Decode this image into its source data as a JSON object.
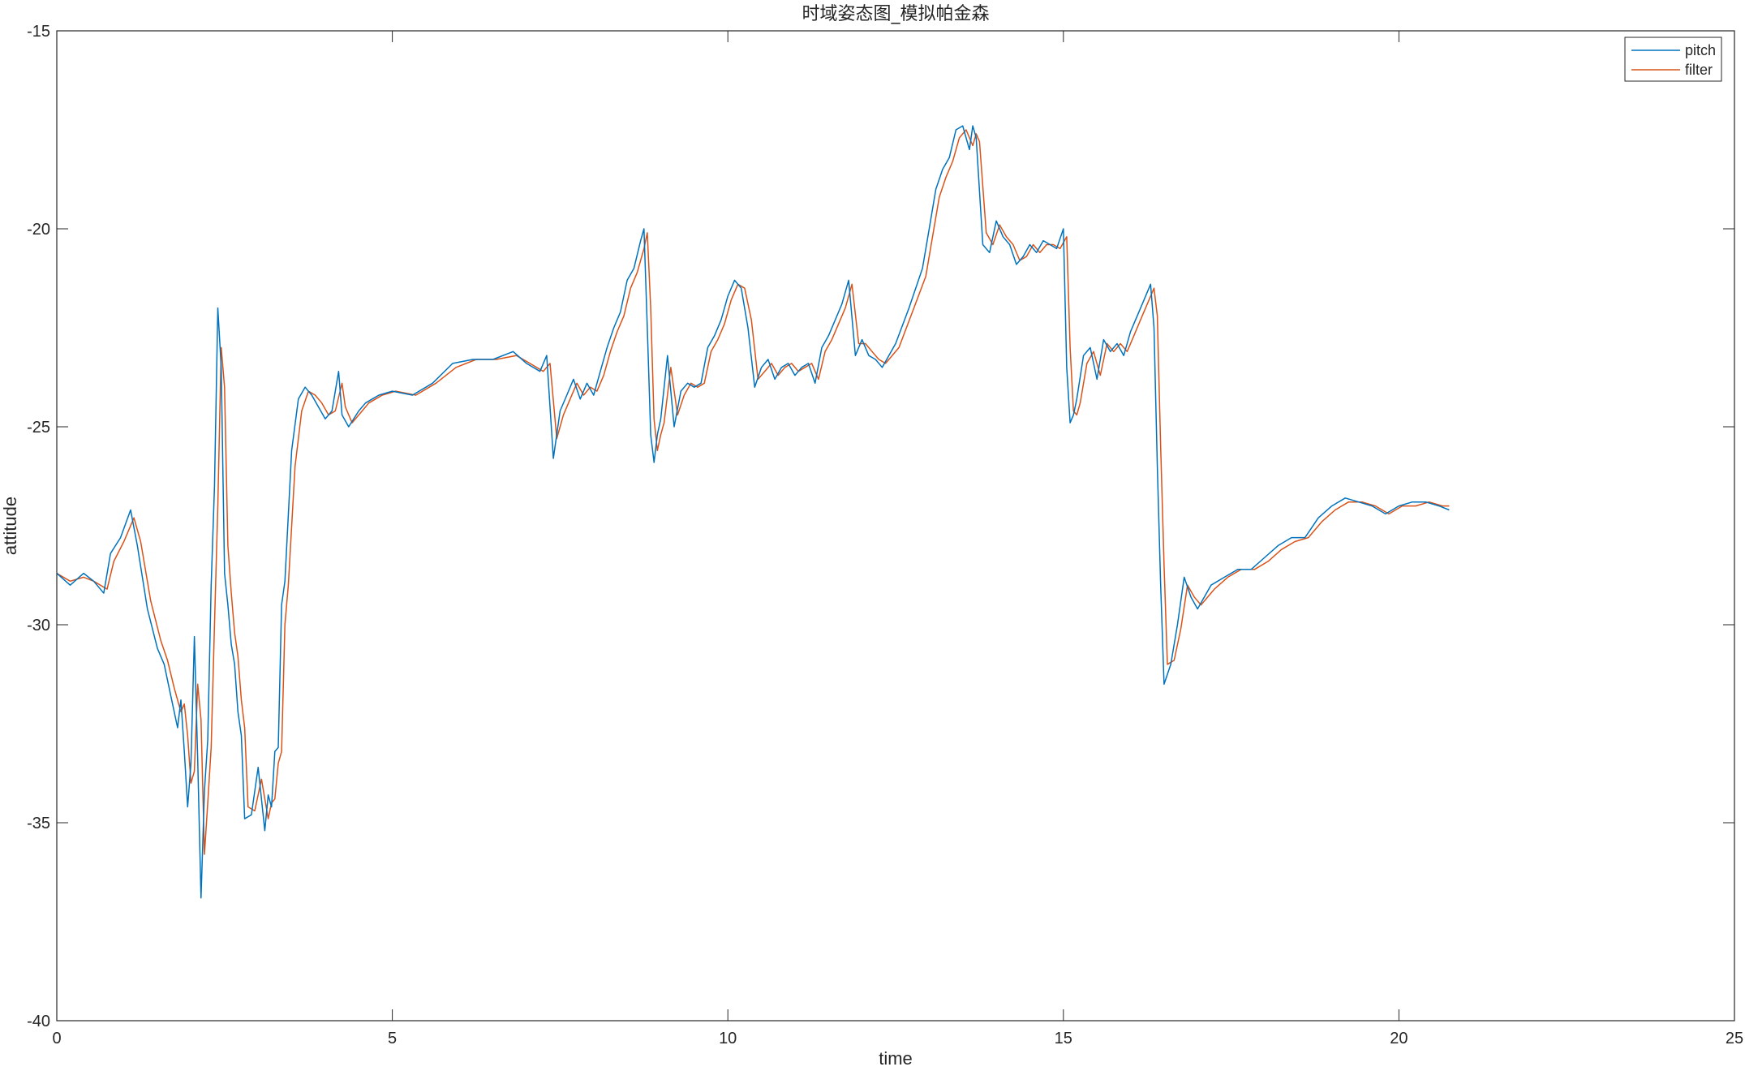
{
  "chart_data": {
    "type": "line",
    "title": "时域姿态图_模拟帕金森",
    "xlabel": "time",
    "ylabel": "attitude",
    "xlim": [
      0,
      25
    ],
    "ylim": [
      -40,
      -15
    ],
    "xticks": [
      0,
      5,
      10,
      15,
      20,
      25
    ],
    "yticks": [
      -15,
      -20,
      -25,
      -30,
      -35,
      -40
    ],
    "grid": false,
    "legend_position": "top-right",
    "series": [
      {
        "name": "pitch",
        "color": "#0072BD",
        "x": [
          0.0,
          0.2,
          0.4,
          0.55,
          0.7,
          0.8,
          0.95,
          1.1,
          1.2,
          1.35,
          1.5,
          1.6,
          1.7,
          1.8,
          1.85,
          1.9,
          1.95,
          2.0,
          2.05,
          2.1,
          2.15,
          2.2,
          2.25,
          2.3,
          2.35,
          2.4,
          2.45,
          2.5,
          2.55,
          2.6,
          2.65,
          2.7,
          2.75,
          2.8,
          2.9,
          3.0,
          3.1,
          3.15,
          3.2,
          3.25,
          3.3,
          3.35,
          3.4,
          3.5,
          3.6,
          3.7,
          3.8,
          3.9,
          4.0,
          4.1,
          4.2,
          4.25,
          4.35,
          4.5,
          4.6,
          4.7,
          4.8,
          5.0,
          5.3,
          5.6,
          5.9,
          6.2,
          6.5,
          6.8,
          7.0,
          7.2,
          7.3,
          7.4,
          7.5,
          7.6,
          7.7,
          7.8,
          7.9,
          8.0,
          8.1,
          8.2,
          8.3,
          8.4,
          8.5,
          8.6,
          8.7,
          8.75,
          8.8,
          8.85,
          8.9,
          8.95,
          9.0,
          9.1,
          9.2,
          9.3,
          9.4,
          9.5,
          9.6,
          9.7,
          9.8,
          9.9,
          10.0,
          10.1,
          10.2,
          10.3,
          10.4,
          10.5,
          10.6,
          10.7,
          10.8,
          10.9,
          11.0,
          11.1,
          11.2,
          11.3,
          11.4,
          11.5,
          11.6,
          11.7,
          11.8,
          11.9,
          12.0,
          12.1,
          12.2,
          12.3,
          12.5,
          12.7,
          12.9,
          13.0,
          13.1,
          13.2,
          13.3,
          13.4,
          13.5,
          13.6,
          13.65,
          13.7,
          13.8,
          13.9,
          14.0,
          14.1,
          14.2,
          14.3,
          14.4,
          14.5,
          14.6,
          14.7,
          14.8,
          14.9,
          15.0,
          15.05,
          15.1,
          15.15,
          15.2,
          15.3,
          15.4,
          15.5,
          15.6,
          15.7,
          15.8,
          15.9,
          16.0,
          16.1,
          16.2,
          16.3,
          16.35,
          16.4,
          16.45,
          16.5,
          16.6,
          16.7,
          16.8,
          16.9,
          17.0,
          17.2,
          17.4,
          17.6,
          17.8,
          18.0,
          18.2,
          18.4,
          18.6,
          18.8,
          19.0,
          19.2,
          19.4,
          19.6,
          19.8,
          20.0,
          20.2,
          20.4,
          20.6,
          20.75
        ],
        "y": [
          -28.7,
          -29.0,
          -28.7,
          -28.9,
          -29.2,
          -28.2,
          -27.8,
          -27.1,
          -28.0,
          -29.6,
          -30.6,
          -31.0,
          -31.8,
          -32.6,
          -31.9,
          -33.2,
          -34.6,
          -33.5,
          -30.3,
          -33.4,
          -36.9,
          -34.2,
          -32.9,
          -29.0,
          -26.5,
          -22.0,
          -23.5,
          -28.7,
          -29.5,
          -30.5,
          -31.0,
          -32.2,
          -32.8,
          -34.9,
          -34.8,
          -33.6,
          -35.2,
          -34.3,
          -34.6,
          -33.2,
          -33.1,
          -29.5,
          -28.9,
          -25.6,
          -24.3,
          -24.0,
          -24.2,
          -24.5,
          -24.8,
          -24.6,
          -23.6,
          -24.7,
          -25.0,
          -24.6,
          -24.4,
          -24.3,
          -24.2,
          -24.1,
          -24.2,
          -23.9,
          -23.4,
          -23.3,
          -23.3,
          -23.1,
          -23.4,
          -23.6,
          -23.2,
          -25.8,
          -24.6,
          -24.2,
          -23.8,
          -24.3,
          -23.9,
          -24.2,
          -23.6,
          -23.0,
          -22.5,
          -22.1,
          -21.3,
          -21.0,
          -20.3,
          -20.0,
          -22.5,
          -25.2,
          -25.9,
          -25.2,
          -24.8,
          -23.2,
          -25.0,
          -24.1,
          -23.9,
          -24.0,
          -23.9,
          -23.0,
          -22.7,
          -22.3,
          -21.7,
          -21.3,
          -21.5,
          -22.5,
          -24.0,
          -23.5,
          -23.3,
          -23.8,
          -23.5,
          -23.4,
          -23.7,
          -23.5,
          -23.4,
          -23.9,
          -23.0,
          -22.7,
          -22.3,
          -21.9,
          -21.3,
          -23.2,
          -22.8,
          -23.2,
          -23.3,
          -23.5,
          -22.9,
          -22.0,
          -21.0,
          -20.0,
          -19.0,
          -18.5,
          -18.2,
          -17.5,
          -17.4,
          -18.0,
          -17.4,
          -17.7,
          -20.4,
          -20.6,
          -19.8,
          -20.2,
          -20.4,
          -20.9,
          -20.7,
          -20.4,
          -20.6,
          -20.3,
          -20.4,
          -20.5,
          -20.0,
          -23.5,
          -24.9,
          -24.7,
          -24.3,
          -23.2,
          -23.0,
          -23.8,
          -22.8,
          -23.1,
          -22.9,
          -23.2,
          -22.6,
          -22.2,
          -21.8,
          -21.4,
          -22.5,
          -26.0,
          -29.0,
          -31.5,
          -31.0,
          -30.0,
          -28.8,
          -29.3,
          -29.6,
          -29.0,
          -28.8,
          -28.6,
          -28.6,
          -28.3,
          -28.0,
          -27.8,
          -27.8,
          -27.3,
          -27.0,
          -26.8,
          -26.9,
          -27.0,
          -27.2,
          -27.0,
          -26.9,
          -26.9,
          -27.0,
          -27.1
        ],
        "legend": "pitch"
      },
      {
        "name": "filter",
        "color": "#D95319",
        "x": [
          0.0,
          0.2,
          0.4,
          0.55,
          0.75,
          0.85,
          1.0,
          1.15,
          1.25,
          1.4,
          1.55,
          1.65,
          1.75,
          1.85,
          1.9,
          1.95,
          2.0,
          2.05,
          2.1,
          2.15,
          2.2,
          2.25,
          2.3,
          2.35,
          2.4,
          2.45,
          2.5,
          2.55,
          2.6,
          2.65,
          2.7,
          2.75,
          2.8,
          2.85,
          2.95,
          3.05,
          3.15,
          3.2,
          3.25,
          3.3,
          3.35,
          3.4,
          3.45,
          3.55,
          3.65,
          3.75,
          3.85,
          3.95,
          4.05,
          4.15,
          4.25,
          4.3,
          4.4,
          4.55,
          4.65,
          4.75,
          4.85,
          5.05,
          5.35,
          5.65,
          5.95,
          6.25,
          6.55,
          6.85,
          7.05,
          7.25,
          7.35,
          7.45,
          7.55,
          7.65,
          7.75,
          7.85,
          7.95,
          8.05,
          8.15,
          8.25,
          8.35,
          8.45,
          8.55,
          8.65,
          8.75,
          8.8,
          8.85,
          8.9,
          8.95,
          9.0,
          9.05,
          9.15,
          9.25,
          9.35,
          9.45,
          9.55,
          9.65,
          9.75,
          9.85,
          9.95,
          10.05,
          10.15,
          10.25,
          10.35,
          10.45,
          10.55,
          10.65,
          10.75,
          10.85,
          10.95,
          11.05,
          11.15,
          11.25,
          11.35,
          11.45,
          11.55,
          11.65,
          11.75,
          11.85,
          11.95,
          12.05,
          12.15,
          12.25,
          12.35,
          12.55,
          12.75,
          12.95,
          13.05,
          13.15,
          13.25,
          13.35,
          13.45,
          13.55,
          13.65,
          13.7,
          13.75,
          13.85,
          13.95,
          14.05,
          14.15,
          14.25,
          14.35,
          14.45,
          14.55,
          14.65,
          14.75,
          14.85,
          14.95,
          15.05,
          15.1,
          15.15,
          15.2,
          15.25,
          15.35,
          15.45,
          15.55,
          15.65,
          15.75,
          15.85,
          15.95,
          16.05,
          16.15,
          16.25,
          16.35,
          16.4,
          16.45,
          16.5,
          16.55,
          16.65,
          16.75,
          16.85,
          16.95,
          17.05,
          17.25,
          17.45,
          17.65,
          17.85,
          18.05,
          18.25,
          18.45,
          18.65,
          18.85,
          19.05,
          19.25,
          19.45,
          19.65,
          19.85,
          20.05,
          20.25,
          20.45,
          20.65,
          20.75
        ],
        "y": [
          -28.7,
          -28.9,
          -28.8,
          -28.9,
          -29.1,
          -28.4,
          -27.9,
          -27.3,
          -27.9,
          -29.4,
          -30.4,
          -30.9,
          -31.6,
          -32.2,
          -32.0,
          -32.8,
          -34.0,
          -33.7,
          -31.5,
          -32.4,
          -35.8,
          -34.5,
          -33.1,
          -30.0,
          -27.0,
          -23.0,
          -24.0,
          -28.0,
          -29.2,
          -30.2,
          -30.8,
          -31.9,
          -32.6,
          -34.6,
          -34.7,
          -33.9,
          -34.9,
          -34.5,
          -34.4,
          -33.5,
          -33.2,
          -30.0,
          -29.0,
          -26.0,
          -24.6,
          -24.1,
          -24.2,
          -24.4,
          -24.7,
          -24.6,
          -23.9,
          -24.5,
          -24.9,
          -24.6,
          -24.4,
          -24.3,
          -24.2,
          -24.1,
          -24.2,
          -23.9,
          -23.5,
          -23.3,
          -23.3,
          -23.2,
          -23.4,
          -23.6,
          -23.4,
          -25.3,
          -24.7,
          -24.3,
          -23.9,
          -24.2,
          -24.0,
          -24.1,
          -23.7,
          -23.1,
          -22.6,
          -22.2,
          -21.5,
          -21.1,
          -20.5,
          -20.1,
          -22.0,
          -24.8,
          -25.6,
          -25.2,
          -24.9,
          -23.5,
          -24.7,
          -24.2,
          -23.9,
          -24.0,
          -23.9,
          -23.1,
          -22.8,
          -22.4,
          -21.8,
          -21.4,
          -21.5,
          -22.3,
          -23.8,
          -23.6,
          -23.4,
          -23.7,
          -23.5,
          -23.4,
          -23.6,
          -23.5,
          -23.4,
          -23.8,
          -23.1,
          -22.8,
          -22.4,
          -22.0,
          -21.4,
          -22.9,
          -22.9,
          -23.1,
          -23.3,
          -23.4,
          -23.0,
          -22.1,
          -21.2,
          -20.2,
          -19.2,
          -18.7,
          -18.3,
          -17.7,
          -17.5,
          -17.9,
          -17.6,
          -17.8,
          -20.1,
          -20.4,
          -19.9,
          -20.2,
          -20.4,
          -20.8,
          -20.7,
          -20.4,
          -20.6,
          -20.4,
          -20.4,
          -20.5,
          -20.2,
          -23.0,
          -24.6,
          -24.7,
          -24.4,
          -23.4,
          -23.1,
          -23.7,
          -22.9,
          -23.1,
          -22.9,
          -23.1,
          -22.7,
          -22.3,
          -21.9,
          -21.5,
          -22.2,
          -25.5,
          -28.5,
          -31.0,
          -30.9,
          -30.1,
          -29.0,
          -29.3,
          -29.5,
          -29.1,
          -28.8,
          -28.6,
          -28.6,
          -28.4,
          -28.1,
          -27.9,
          -27.8,
          -27.4,
          -27.1,
          -26.9,
          -26.9,
          -27.0,
          -27.2,
          -27.0,
          -27.0,
          -26.9,
          -27.0,
          -27.0
        ],
        "legend": "filter"
      }
    ]
  }
}
